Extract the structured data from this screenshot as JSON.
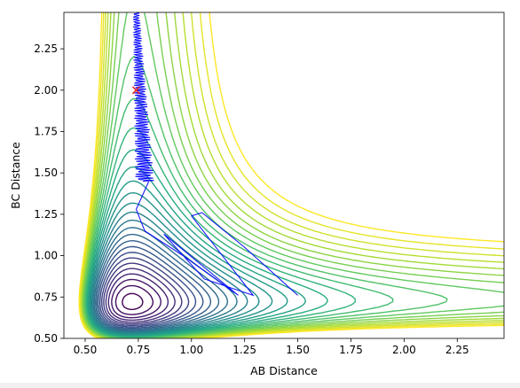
{
  "chart_data": {
    "type": "contour",
    "title": "",
    "xlabel": "AB Distance",
    "ylabel": "BC Distance",
    "xlim": [
      0.4,
      2.47
    ],
    "ylim": [
      0.5,
      2.47
    ],
    "xticks": [
      "0.50",
      "0.75",
      "1.00",
      "1.25",
      "1.50",
      "1.75",
      "2.00",
      "2.25"
    ],
    "yticks": [
      "0.50",
      "0.75",
      "1.00",
      "1.25",
      "1.50",
      "1.75",
      "2.00",
      "2.25"
    ],
    "grid": false,
    "colormap": "viridis",
    "trajectory_color": "#0a0aff",
    "start_marker": {
      "x": 0.74,
      "y": 2.0,
      "symbol": "x",
      "color": "#e8242a"
    },
    "contour_levels": 30
  }
}
